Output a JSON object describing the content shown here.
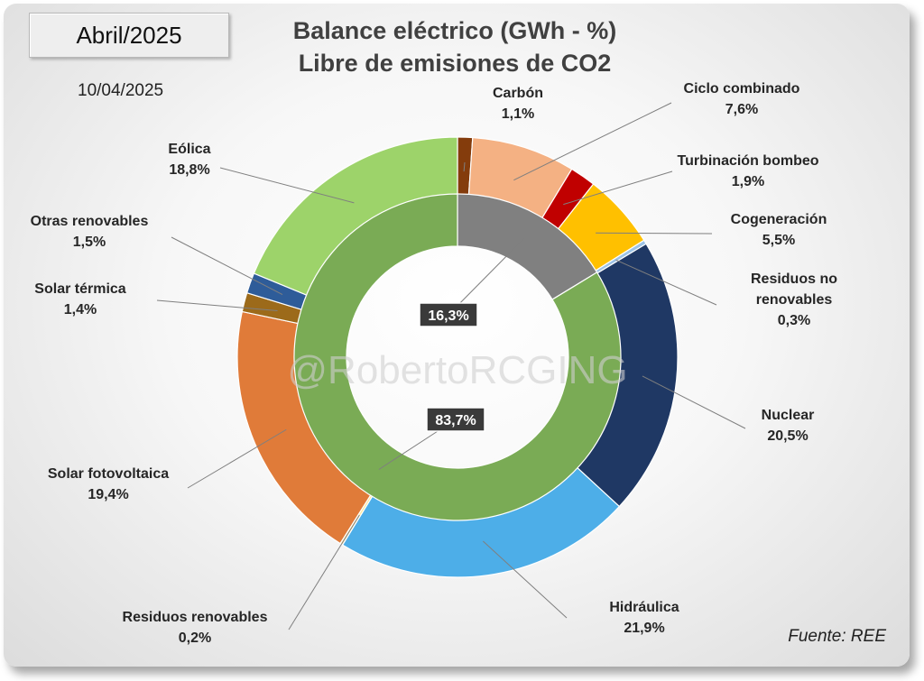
{
  "header": {
    "month": "Abril/2025",
    "date": "10/04/2025",
    "title_line1": "Balance eléctrico (GWh - %)",
    "title_line2": "Libre de emisiones de CO2"
  },
  "footer": {
    "source": "Fuente: REE"
  },
  "watermark": "@RobertoRCGING",
  "chart_data": {
    "type": "pie",
    "subtype": "double-donut",
    "title": "Balance eléctrico (GWh - %) Libre de emisiones de CO2",
    "outer_ring": {
      "unit": "%",
      "slices": [
        {
          "label": "Carbón",
          "value": 1.1,
          "value_text": "1,1%",
          "color": "#843c0c"
        },
        {
          "label": "Ciclo combinado",
          "value": 7.6,
          "value_text": "7,6%",
          "color": "#f4b183"
        },
        {
          "label": "Turbinación bombeo",
          "value": 1.9,
          "value_text": "1,9%",
          "color": "#c00000"
        },
        {
          "label": "Cogeneración",
          "value": 5.5,
          "value_text": "5,5%",
          "color": "#ffc000"
        },
        {
          "label": "Residuos no renovables",
          "value": 0.3,
          "value_text": "0,3%",
          "color": "#9dc3e6"
        },
        {
          "label": "Nuclear",
          "value": 20.5,
          "value_text": "20,5%",
          "color": "#1f3864"
        },
        {
          "label": "Hidráulica",
          "value": 21.9,
          "value_text": "21,9%",
          "color": "#4daee8"
        },
        {
          "label": "Residuos renovables",
          "value": 0.2,
          "value_text": "0,2%",
          "color": "#ffe699"
        },
        {
          "label": "Solar fotovoltaica",
          "value": 19.4,
          "value_text": "19,4%",
          "color": "#e07b39"
        },
        {
          "label": "Solar térmica",
          "value": 1.4,
          "value_text": "1,4%",
          "color": "#9c6a1a"
        },
        {
          "label": "Otras renovables",
          "value": 1.5,
          "value_text": "1,5%",
          "color": "#2e5c99"
        },
        {
          "label": "Eólica",
          "value": 18.8,
          "value_text": "18,8%",
          "color": "#9dd36a"
        }
      ]
    },
    "inner_ring": {
      "unit": "%",
      "slices": [
        {
          "value": 16.3,
          "value_text": "16,3%",
          "color": "#808080"
        },
        {
          "value": 83.7,
          "value_text": "83,7%",
          "color": "#7aab55"
        }
      ]
    }
  }
}
